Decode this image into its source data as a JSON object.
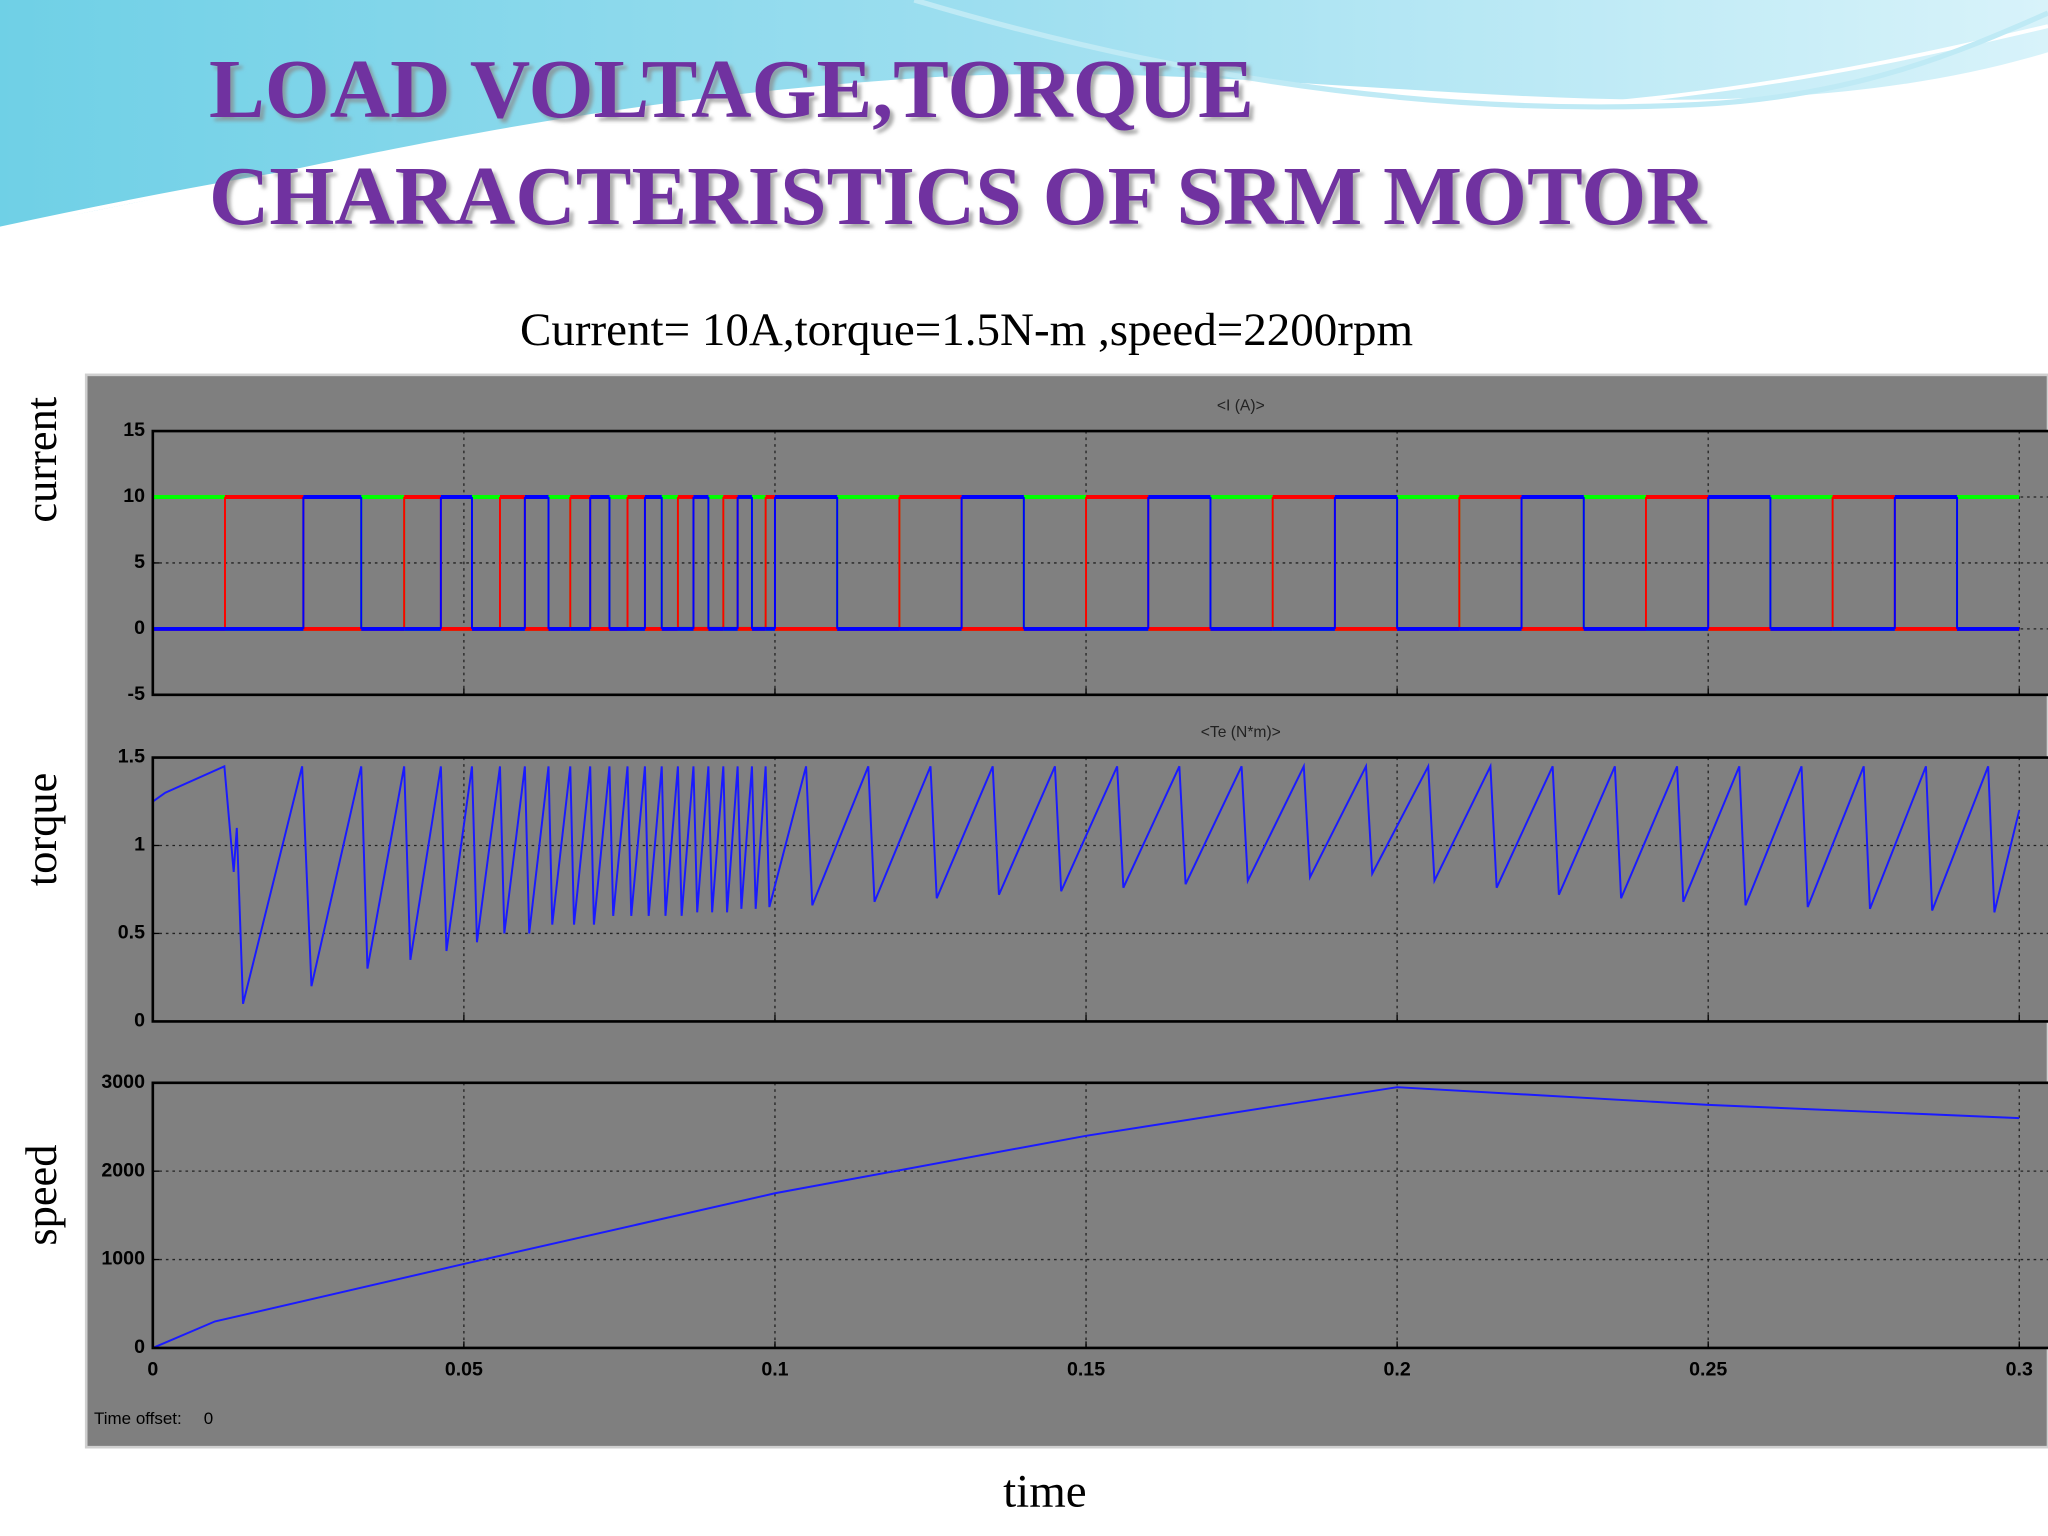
{
  "slide": {
    "title_lines": [
      "LOAD VOLTAGE,TORQUE",
      "CHARACTERISTICS OF SRM MOTOR"
    ],
    "subtitle": "Current= 10A,torque=1.5N-m ,speed=2200rpm",
    "x_axis_label": "time",
    "time_offset_label": "Time offset:",
    "time_offset": 0
  },
  "chart_data": [
    {
      "type": "step",
      "title": "<I (A)>",
      "y_label": "current",
      "x": [
        0,
        0.0116,
        0.0242,
        0.0335,
        0.0404,
        0.0463,
        0.0513,
        0.0558,
        0.0598,
        0.0636,
        0.0671,
        0.0703,
        0.0734,
        0.0763,
        0.0791,
        0.0818,
        0.0844,
        0.0869,
        0.0893,
        0.0917,
        0.094,
        0.0963,
        0.0985,
        0.1,
        0.11,
        0.12,
        0.13,
        0.14,
        0.15,
        0.16,
        0.17,
        0.18,
        0.19,
        0.2,
        0.21,
        0.22,
        0.23,
        0.24,
        0.25,
        0.26,
        0.27,
        0.28,
        0.29
      ],
      "series": [
        {
          "color": "#00ff00",
          "values": [
            10,
            0,
            0,
            10,
            0,
            0,
            10,
            0,
            0,
            10,
            0,
            0,
            10,
            0,
            0,
            10,
            0,
            0,
            10,
            0,
            0,
            10,
            0,
            0,
            10,
            0,
            0,
            10,
            0,
            0,
            10,
            0,
            0,
            10,
            0,
            0,
            10,
            0,
            0,
            10,
            0,
            0,
            10
          ]
        },
        {
          "color": "#ff0000",
          "values": [
            0,
            10,
            0,
            0,
            10,
            0,
            0,
            10,
            0,
            0,
            10,
            0,
            0,
            10,
            0,
            0,
            10,
            0,
            0,
            10,
            0,
            0,
            10,
            0,
            0,
            10,
            0,
            0,
            10,
            0,
            0,
            10,
            0,
            0,
            10,
            0,
            0,
            10,
            0,
            0,
            10,
            0,
            0
          ]
        },
        {
          "color": "#0000ff",
          "values": [
            0,
            0,
            10,
            0,
            0,
            10,
            0,
            0,
            10,
            0,
            0,
            10,
            0,
            0,
            10,
            0,
            0,
            10,
            0,
            0,
            10,
            0,
            0,
            10,
            0,
            0,
            10,
            0,
            0,
            10,
            0,
            0,
            10,
            0,
            0,
            10,
            0,
            0,
            10,
            0,
            0,
            10,
            0
          ]
        }
      ],
      "xlim": [
        0,
        0.3
      ],
      "ylim": [
        -5,
        15
      ],
      "xticks": [
        0,
        0.05,
        0.1,
        0.15,
        0.2,
        0.25,
        0.3
      ],
      "yticks": [
        -5,
        0,
        5,
        10,
        15
      ],
      "grid": true
    },
    {
      "type": "line",
      "title": "<Te (N*m)>",
      "y_label": "torque",
      "x": [
        0,
        0.002,
        0.0115,
        0.013,
        0.0135,
        0.0145,
        0.024,
        0.0255,
        0.0335,
        0.0345,
        0.0404,
        0.0414,
        0.0463,
        0.0472,
        0.0513,
        0.0521,
        0.0558,
        0.0565,
        0.0598,
        0.0605,
        0.0636,
        0.0642,
        0.0671,
        0.0677,
        0.0703,
        0.0709,
        0.0734,
        0.074,
        0.0763,
        0.0769,
        0.0791,
        0.0797,
        0.0818,
        0.0824,
        0.0844,
        0.085,
        0.0869,
        0.0875,
        0.0893,
        0.0899,
        0.0917,
        0.0923,
        0.094,
        0.0946,
        0.0963,
        0.0969,
        0.0985,
        0.0991,
        0.105,
        0.106,
        0.115,
        0.116,
        0.125,
        0.126,
        0.135,
        0.136,
        0.145,
        0.146,
        0.155,
        0.156,
        0.165,
        0.166,
        0.175,
        0.176,
        0.185,
        0.186,
        0.195,
        0.196,
        0.205,
        0.206,
        0.215,
        0.216,
        0.225,
        0.226,
        0.235,
        0.236,
        0.245,
        0.246,
        0.255,
        0.256,
        0.265,
        0.266,
        0.275,
        0.276,
        0.285,
        0.286,
        0.295,
        0.296,
        0.3
      ],
      "series": [
        {
          "color": "#1a1aff",
          "values": [
            1.25,
            1.3,
            1.45,
            0.85,
            1.1,
            0.1,
            1.45,
            0.2,
            1.45,
            0.3,
            1.45,
            0.35,
            1.45,
            0.4,
            1.45,
            0.45,
            1.45,
            0.5,
            1.45,
            0.5,
            1.45,
            0.55,
            1.45,
            0.55,
            1.45,
            0.55,
            1.45,
            0.6,
            1.45,
            0.6,
            1.45,
            0.6,
            1.45,
            0.6,
            1.45,
            0.6,
            1.45,
            0.62,
            1.45,
            0.62,
            1.45,
            0.62,
            1.45,
            0.64,
            1.45,
            0.64,
            1.45,
            0.65,
            1.45,
            0.66,
            1.45,
            0.68,
            1.45,
            0.7,
            1.45,
            0.72,
            1.45,
            0.74,
            1.45,
            0.76,
            1.45,
            0.78,
            1.45,
            0.8,
            1.45,
            0.82,
            1.45,
            0.84,
            1.45,
            0.8,
            1.45,
            0.76,
            1.45,
            0.72,
            1.45,
            0.7,
            1.45,
            0.68,
            1.45,
            0.66,
            1.45,
            0.65,
            1.45,
            0.64,
            1.45,
            0.63,
            1.45,
            0.62,
            1.2
          ]
        }
      ],
      "xlim": [
        0,
        0.3
      ],
      "ylim": [
        0,
        1.5
      ],
      "xticks": [
        0,
        0.05,
        0.1,
        0.15,
        0.2,
        0.25,
        0.3
      ],
      "yticks": [
        0,
        0.5,
        1,
        1.5
      ],
      "grid": true
    },
    {
      "type": "line",
      "y_label": "speed",
      "x": [
        0,
        0.01,
        0.015,
        0.05,
        0.1,
        0.15,
        0.2,
        0.25,
        0.3
      ],
      "series": [
        {
          "color": "#1a1aff",
          "values": [
            0,
            300,
            380,
            950,
            1750,
            2400,
            2950,
            2750,
            2600
          ]
        }
      ],
      "xlim": [
        0,
        0.3
      ],
      "ylim": [
        0,
        3000
      ],
      "xticks": [
        0,
        0.05,
        0.1,
        0.15,
        0.2,
        0.25,
        0.3
      ],
      "yticks": [
        0,
        1000,
        2000,
        3000
      ],
      "grid": true
    }
  ]
}
